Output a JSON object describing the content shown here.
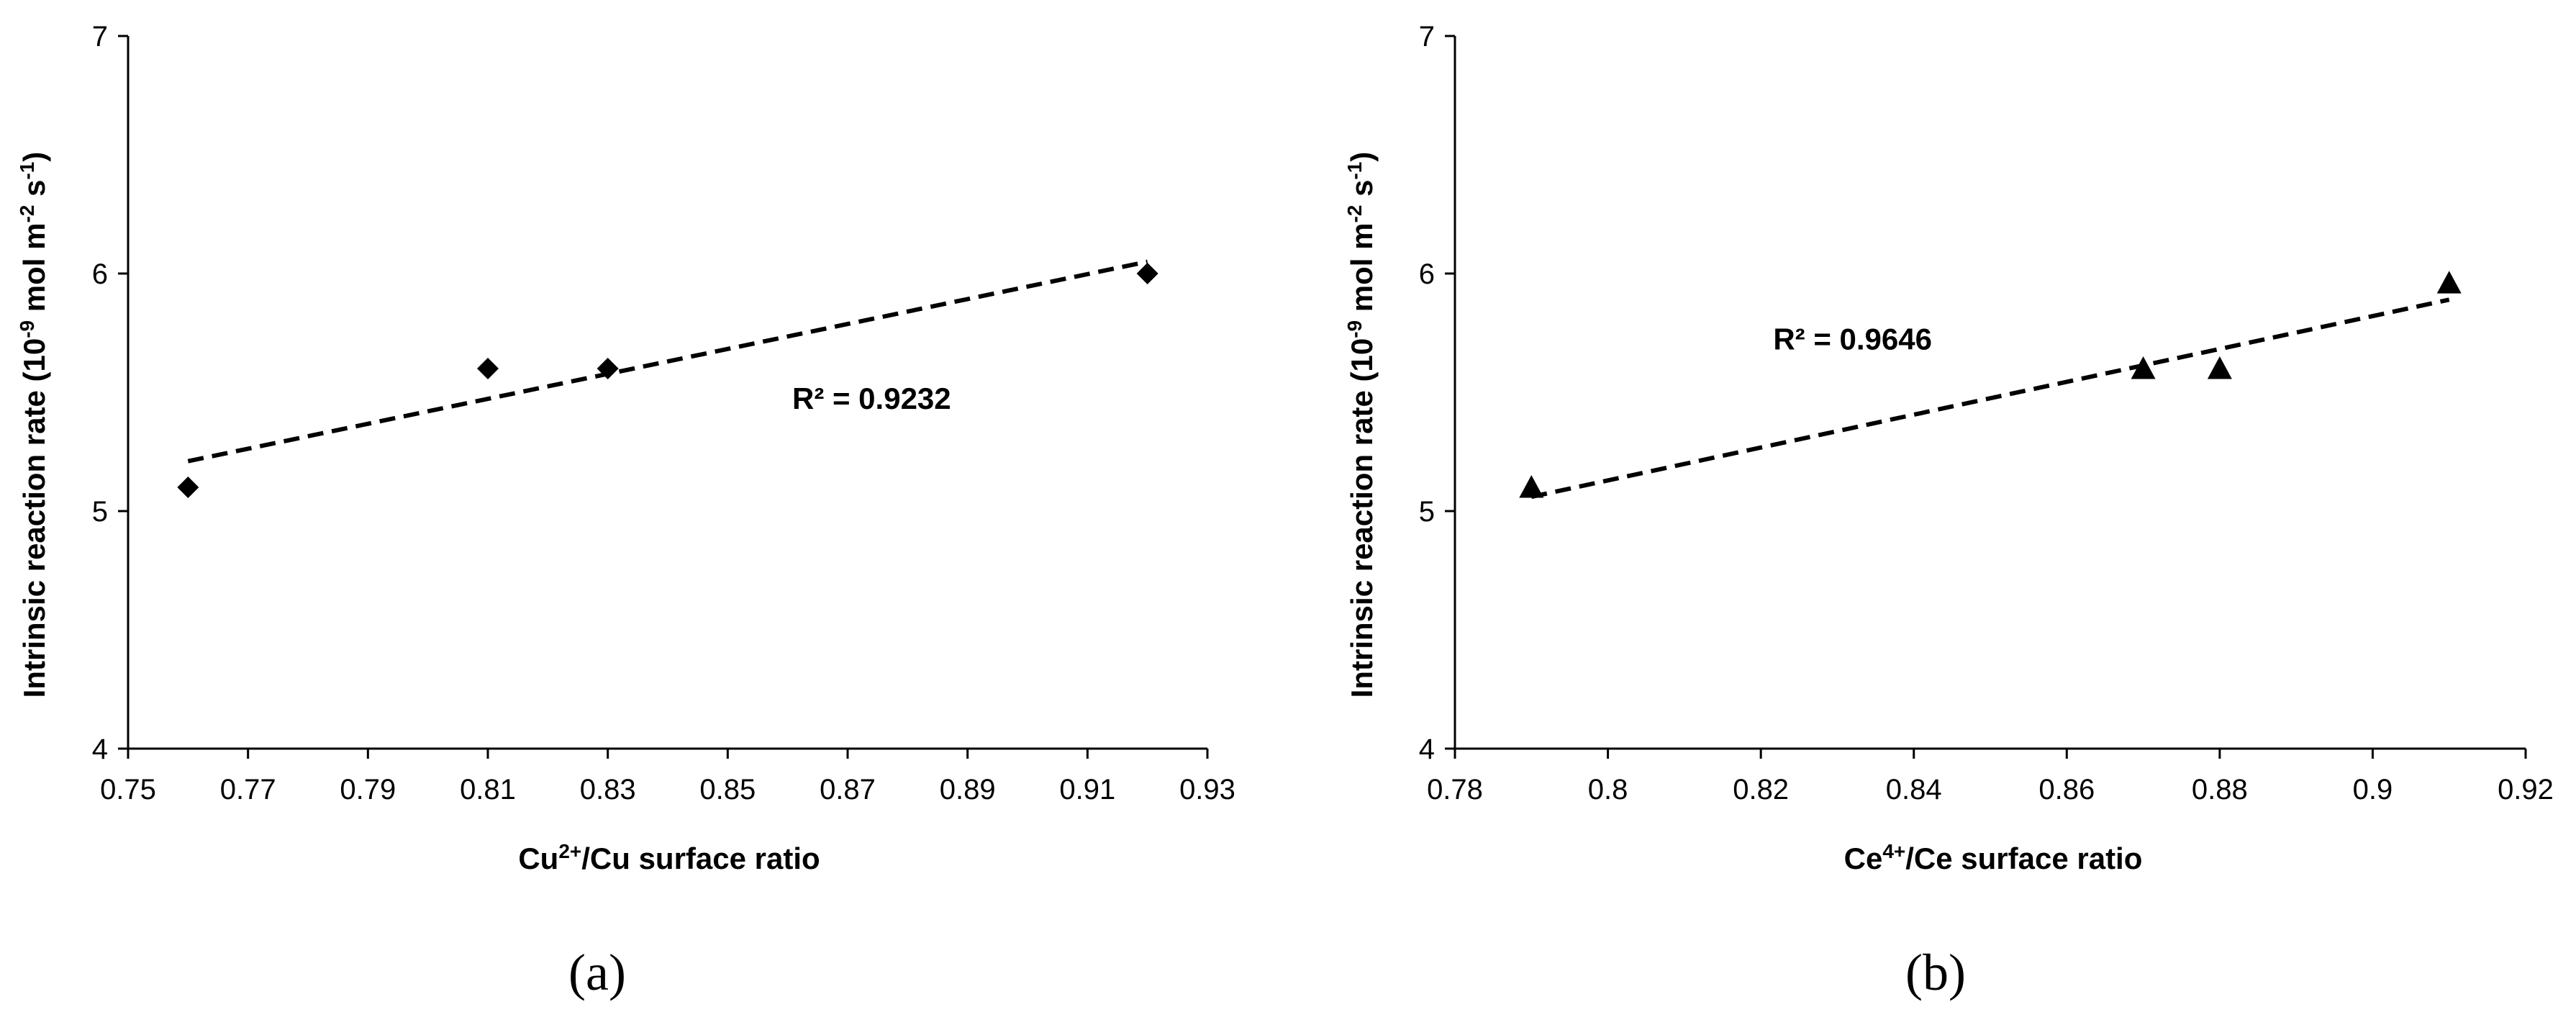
{
  "chart_data": [
    {
      "id": "a",
      "type": "scatter",
      "panel_label": "(a)",
      "xlabel": {
        "pre": "Cu",
        "sup": "2+",
        "post": "/Cu surface ratio"
      },
      "ylabel": {
        "t1": "Intrinsic reaction rate (10",
        "s1": "-9",
        "t2": " mol m",
        "s2": "-2",
        "t3": " s",
        "s3": "-1",
        "t4": ")"
      },
      "xlim": [
        0.75,
        0.93
      ],
      "ylim": [
        4,
        7
      ],
      "xticks": [
        0.75,
        0.77,
        0.79,
        0.81,
        0.83,
        0.85,
        0.87,
        0.89,
        0.91,
        0.93
      ],
      "xtick_labels": [
        "0.75",
        "0.77",
        "0.79",
        "0.81",
        "0.83",
        "0.85",
        "0.87",
        "0.89",
        "0.91",
        "0.93"
      ],
      "yticks": [
        4,
        5,
        6,
        7
      ],
      "ytick_labels": [
        "4",
        "5",
        "6",
        "7"
      ],
      "marker": "diamond",
      "x": [
        0.76,
        0.81,
        0.83,
        0.92
      ],
      "y": [
        5.1,
        5.6,
        5.6,
        6.0
      ],
      "trendline": {
        "x": [
          0.76,
          0.92
        ],
        "y": [
          5.21,
          6.05
        ]
      },
      "annotation": {
        "text": "R² = 0.9232",
        "x": 0.874,
        "y": 5.43
      }
    },
    {
      "id": "b",
      "type": "scatter",
      "panel_label": "(b)",
      "xlabel": {
        "pre": "Ce",
        "sup": "4+",
        "post": "/Ce surface ratio"
      },
      "ylabel": {
        "t1": "Intrinsic reaction rate (10",
        "s1": "-9",
        "t2": " mol m",
        "s2": "-2",
        "t3": " s",
        "s3": "-1",
        "t4": ")"
      },
      "xlim": [
        0.78,
        0.92
      ],
      "ylim": [
        4,
        7
      ],
      "xticks": [
        0.78,
        0.8,
        0.82,
        0.84,
        0.86,
        0.88,
        0.9,
        0.92
      ],
      "xtick_labels": [
        "0.78",
        "0.8",
        "0.82",
        "0.84",
        "0.86",
        "0.88",
        "0.9",
        "0.92"
      ],
      "yticks": [
        4,
        5,
        6,
        7
      ],
      "ytick_labels": [
        "4",
        "5",
        "6",
        "7"
      ],
      "marker": "triangle",
      "x": [
        0.79,
        0.87,
        0.88,
        0.91
      ],
      "y": [
        5.1,
        5.6,
        5.6,
        5.96
      ],
      "trendline": {
        "x": [
          0.79,
          0.91
        ],
        "y": [
          5.06,
          5.89
        ]
      },
      "annotation": {
        "text": "R² = 0.9646",
        "x": 0.832,
        "y": 5.68
      }
    }
  ]
}
